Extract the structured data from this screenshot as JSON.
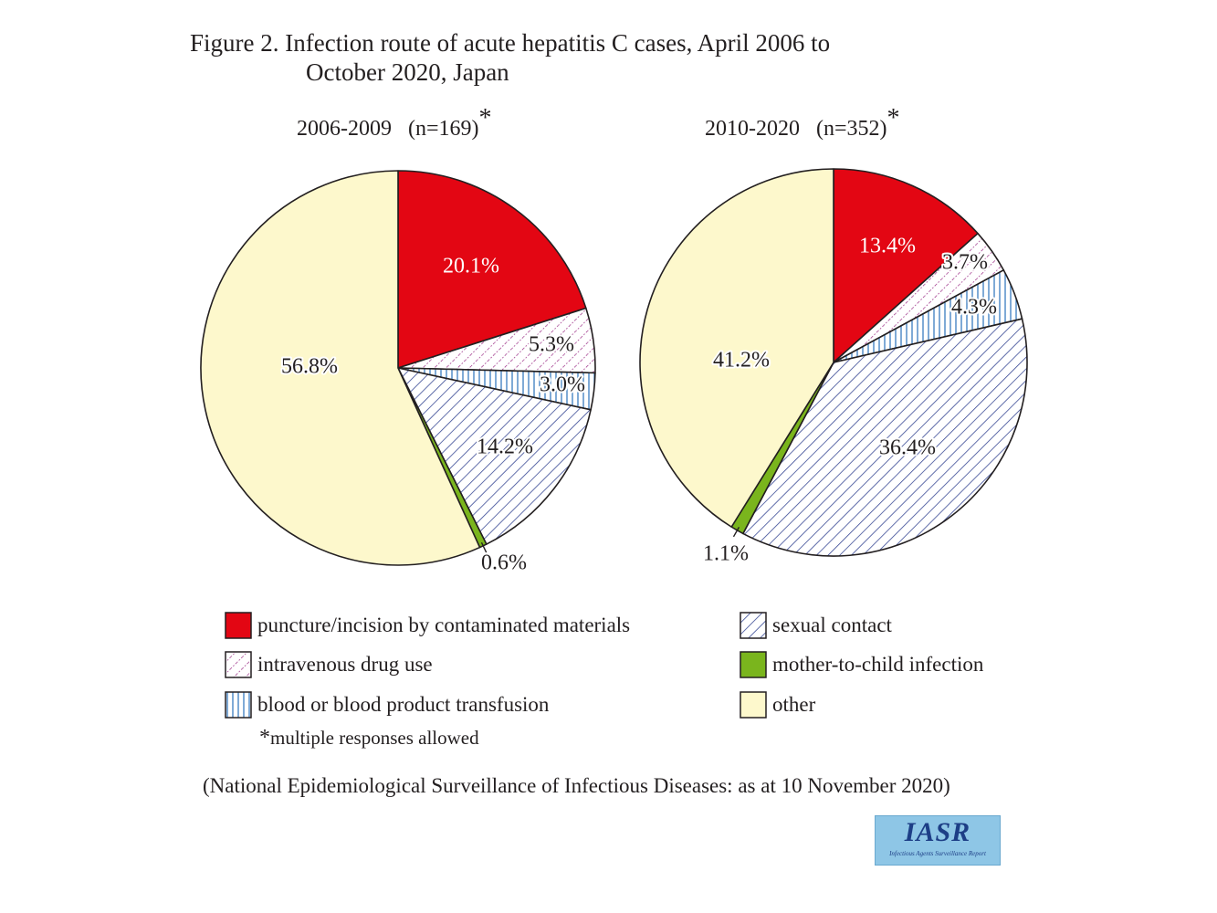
{
  "title": {
    "line1": "Figure 2. Infection route of acute hepatitis C cases, April 2006 to",
    "line2": "October 2020, Japan"
  },
  "colors": {
    "puncture": "#e30613",
    "drug": "#9b2d86",
    "transfusion": "#3a7dbf",
    "sexual": "#2e3f8f",
    "mother": "#7ab51d",
    "other": "#fdf8cc",
    "outline": "#231f20"
  },
  "legend": [
    {
      "key": "puncture",
      "label": "puncture/incision by contaminated materials",
      "pattern": "solid-red"
    },
    {
      "key": "drug",
      "label": "intravenous drug use",
      "pattern": "dotted-purple"
    },
    {
      "key": "transfusion",
      "label": "blood or blood product transfusion",
      "pattern": "vertical-lines-blue"
    },
    {
      "key": "sexual",
      "label": "sexual contact",
      "pattern": "diagonal-lines-blue"
    },
    {
      "key": "mother",
      "label": "mother-to-child infection",
      "pattern": "solid-green"
    },
    {
      "key": "other",
      "label": "other",
      "pattern": "solid-cream"
    }
  ],
  "footnote": {
    "asterisk": "*",
    "text": "multiple responses allowed"
  },
  "source": "(National Epidemiological Surveillance of Infectious Diseases: as at 10 November 2020)",
  "logo": {
    "main": "IASR",
    "sub": "Infectious Agents Surveillance Report"
  },
  "chart_data": [
    {
      "type": "pie",
      "title": "2006-2009",
      "n_label": "(n=169)",
      "asterisk": "*",
      "slices": [
        {
          "key": "puncture",
          "value": 20.1,
          "label": "20.1%"
        },
        {
          "key": "drug",
          "value": 5.3,
          "label": "5.3%"
        },
        {
          "key": "transfusion",
          "value": 3.0,
          "label": "3.0%"
        },
        {
          "key": "sexual",
          "value": 14.2,
          "label": "14.2%"
        },
        {
          "key": "mother",
          "value": 0.6,
          "label": "0.6%"
        },
        {
          "key": "other",
          "value": 56.8,
          "label": "56.8%"
        }
      ]
    },
    {
      "type": "pie",
      "title": "2010-2020",
      "n_label": "(n=352)",
      "asterisk": "*",
      "slices": [
        {
          "key": "puncture",
          "value": 13.4,
          "label": "13.4%"
        },
        {
          "key": "drug",
          "value": 3.7,
          "label": "3.7%"
        },
        {
          "key": "transfusion",
          "value": 4.3,
          "label": "4.3%"
        },
        {
          "key": "sexual",
          "value": 36.4,
          "label": "36.4%"
        },
        {
          "key": "mother",
          "value": 1.1,
          "label": "1.1%"
        },
        {
          "key": "other",
          "value": 41.2,
          "label": "41.2%"
        }
      ]
    }
  ]
}
